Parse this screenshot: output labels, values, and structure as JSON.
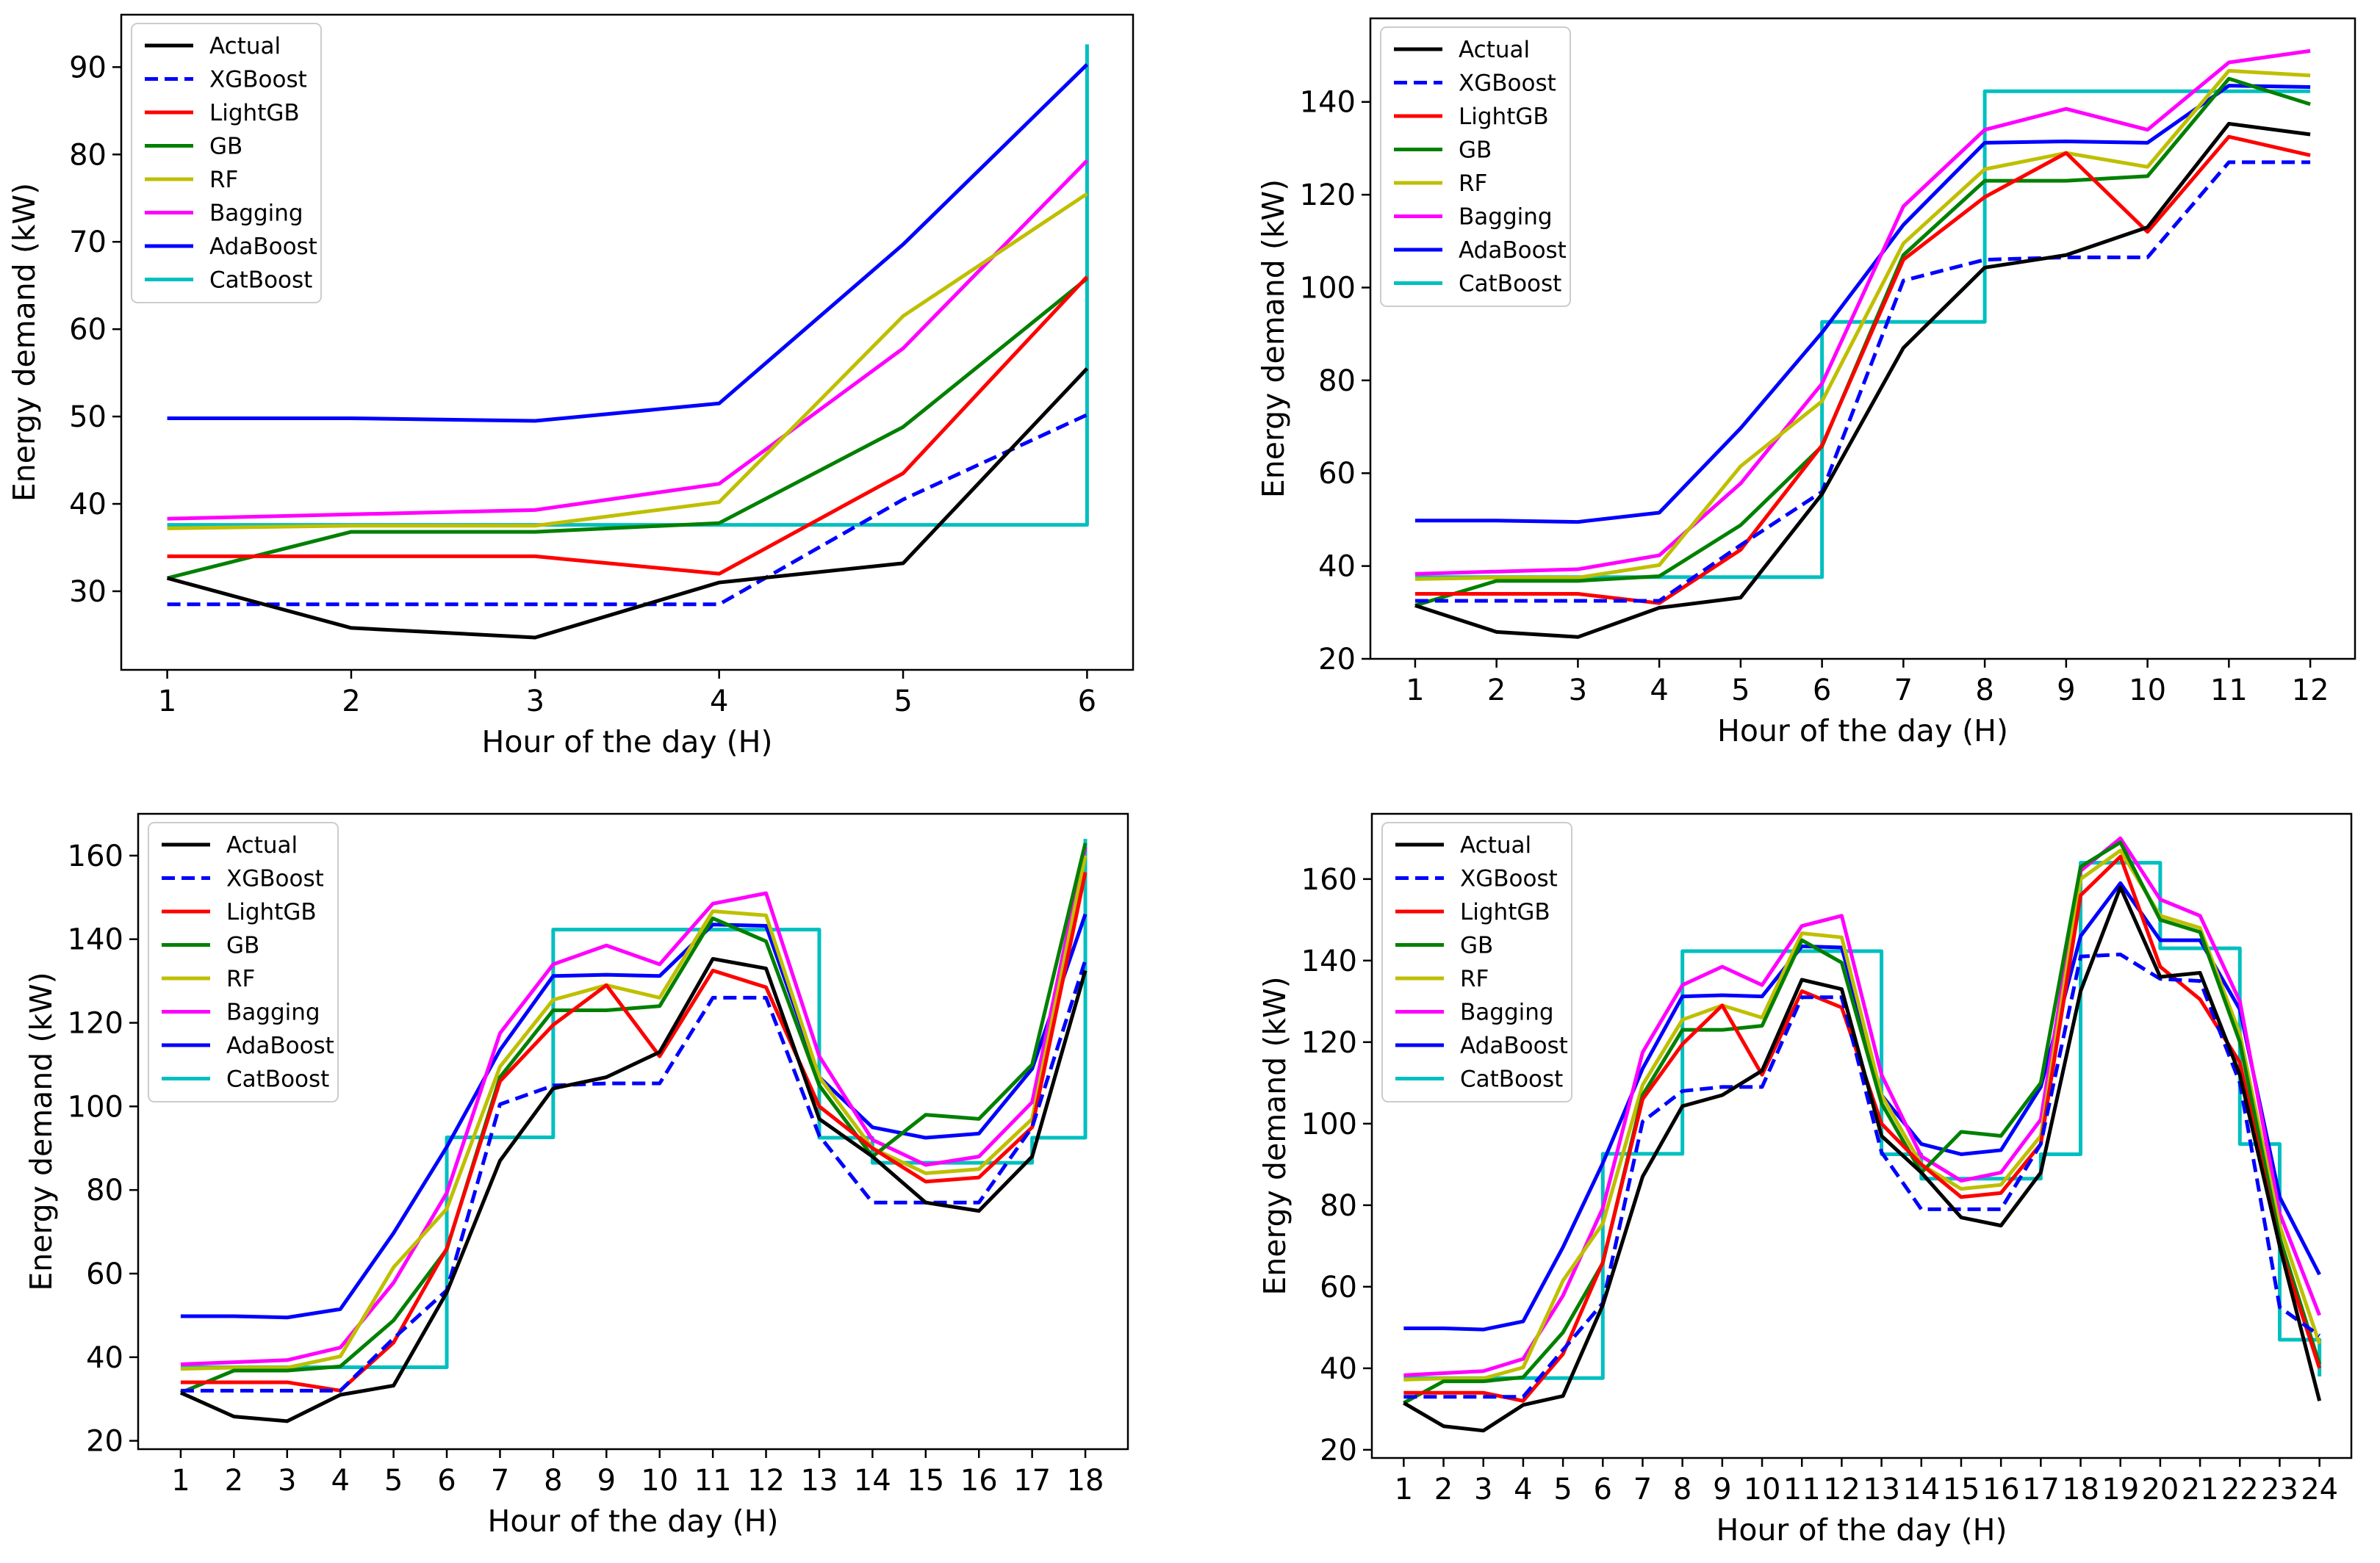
{
  "colors": {
    "Actual": "#000000",
    "XGBoost": "#0000ff",
    "LightGB": "#ff0000",
    "GB": "#008000",
    "RF": "#bfbf00",
    "Bagging": "#ff00ff",
    "AdaBoost": "#0000ff",
    "CatBoost": "#00bfbf"
  },
  "chart_data": [
    {
      "type": "line",
      "title": "",
      "xlabel": "Hour of the day (H)",
      "ylabel": "Energy demand (kW)",
      "x": [
        1,
        2,
        3,
        4,
        5,
        6
      ],
      "xlim": [
        0.75,
        6.25
      ],
      "ylim": [
        21,
        96
      ],
      "yticks": [
        30,
        40,
        50,
        60,
        70,
        80,
        90
      ],
      "legend": "top-left",
      "series": [
        {
          "name": "Actual",
          "values": [
            31.5,
            25.8,
            24.7,
            31.0,
            33.2,
            55.5
          ]
        },
        {
          "name": "XGBoost",
          "values": [
            28.5,
            28.5,
            28.5,
            28.5,
            40.5,
            50.2
          ]
        },
        {
          "name": "LightGB",
          "values": [
            34.0,
            34.0,
            34.0,
            32.0,
            43.5,
            66.0
          ]
        },
        {
          "name": "GB",
          "values": [
            31.5,
            36.8,
            36.8,
            37.8,
            48.8,
            65.8
          ]
        },
        {
          "name": "RF",
          "values": [
            37.2,
            37.5,
            37.5,
            40.2,
            61.5,
            75.5
          ]
        },
        {
          "name": "Bagging",
          "values": [
            38.3,
            38.8,
            39.3,
            42.3,
            57.8,
            79.3
          ]
        },
        {
          "name": "AdaBoost",
          "values": [
            49.8,
            49.8,
            49.5,
            51.5,
            69.7,
            90.3
          ]
        },
        {
          "name": "CatBoost",
          "step": true,
          "values": [
            37.6,
            37.6,
            37.6,
            37.6,
            37.6,
            92.6
          ]
        }
      ]
    },
    {
      "type": "line",
      "title": "",
      "xlabel": "Hour of the day (H)",
      "ylabel": "Energy demand (kW)",
      "x": [
        1,
        2,
        3,
        4,
        5,
        6,
        7,
        8,
        9,
        10,
        11,
        12
      ],
      "xlim": [
        0.45,
        12.55
      ],
      "ylim": [
        20,
        158
      ],
      "yticks": [
        20,
        40,
        60,
        80,
        100,
        120,
        140
      ],
      "legend": "top-left",
      "series": [
        {
          "name": "Actual",
          "values": [
            31.5,
            25.8,
            24.7,
            31.0,
            33.2,
            55.5,
            87.0,
            104.3,
            107.0,
            113.0,
            135.3,
            133.0
          ]
        },
        {
          "name": "XGBoost",
          "values": [
            32.5,
            32.5,
            32.5,
            32.5,
            44.5,
            56.0,
            101.5,
            106.0,
            106.5,
            106.5,
            127.0,
            127.0
          ]
        },
        {
          "name": "LightGB",
          "values": [
            34.0,
            34.0,
            34.0,
            32.0,
            43.5,
            66.0,
            106.0,
            119.5,
            129.0,
            112.0,
            132.5,
            128.5
          ]
        },
        {
          "name": "GB",
          "values": [
            31.5,
            36.8,
            36.8,
            37.8,
            48.8,
            65.8,
            107.0,
            123.0,
            123.0,
            124.0,
            145.0,
            139.5
          ]
        },
        {
          "name": "RF",
          "values": [
            37.2,
            37.5,
            37.5,
            40.2,
            61.5,
            75.5,
            109.5,
            125.5,
            129.0,
            126.0,
            146.7,
            145.7
          ]
        },
        {
          "name": "Bagging",
          "values": [
            38.3,
            38.8,
            39.3,
            42.3,
            57.8,
            79.3,
            117.5,
            134.0,
            138.5,
            134.0,
            148.5,
            151.0
          ]
        },
        {
          "name": "AdaBoost",
          "values": [
            49.8,
            49.8,
            49.5,
            51.5,
            69.7,
            90.3,
            113.5,
            131.2,
            131.5,
            131.2,
            143.5,
            143.2
          ]
        },
        {
          "name": "CatBoost",
          "step": true,
          "values": [
            37.6,
            37.6,
            37.6,
            37.6,
            37.6,
            92.6,
            92.6,
            142.3,
            142.3,
            142.3,
            142.3,
            142.3
          ]
        }
      ]
    },
    {
      "type": "line",
      "title": "",
      "xlabel": "Hour of the day (H)",
      "ylabel": "Energy demand (kW)",
      "x": [
        1,
        2,
        3,
        4,
        5,
        6,
        7,
        8,
        9,
        10,
        11,
        12,
        13,
        14,
        15,
        16,
        17,
        18
      ],
      "xlim": [
        0.2,
        18.8
      ],
      "ylim": [
        18,
        170
      ],
      "yticks": [
        20,
        40,
        60,
        80,
        100,
        120,
        140,
        160
      ],
      "legend": "top-left",
      "series": [
        {
          "name": "Actual",
          "values": [
            31.5,
            25.8,
            24.7,
            31.0,
            33.2,
            55.5,
            87.0,
            104.3,
            107.0,
            113.0,
            135.3,
            133.0,
            97.0,
            88.0,
            77.0,
            75.0,
            88.0,
            132.5
          ]
        },
        {
          "name": "XGBoost",
          "values": [
            32.0,
            32.0,
            32.0,
            32.0,
            44.5,
            56.0,
            100.5,
            105.0,
            105.5,
            105.5,
            126.0,
            126.0,
            93.0,
            77.0,
            77.0,
            77.0,
            95.0,
            135.0
          ]
        },
        {
          "name": "LightGB",
          "values": [
            34.0,
            34.0,
            34.0,
            32.0,
            43.5,
            66.0,
            106.0,
            119.5,
            129.0,
            112.0,
            132.5,
            128.5,
            100.0,
            90.0,
            82.0,
            83.0,
            95.0,
            156.0
          ]
        },
        {
          "name": "GB",
          "values": [
            31.5,
            36.8,
            36.8,
            37.8,
            48.8,
            65.8,
            107.0,
            123.0,
            123.0,
            124.0,
            145.0,
            139.5,
            105.0,
            88.0,
            98.0,
            97.0,
            110.0,
            163.0
          ]
        },
        {
          "name": "RF",
          "values": [
            37.2,
            37.5,
            37.5,
            40.2,
            61.5,
            75.5,
            109.5,
            125.5,
            129.0,
            126.0,
            146.7,
            145.7,
            107.0,
            90.0,
            84.0,
            85.0,
            97.0,
            160.0
          ]
        },
        {
          "name": "Bagging",
          "values": [
            38.3,
            38.8,
            39.3,
            42.3,
            57.8,
            79.3,
            117.5,
            134.0,
            138.5,
            134.0,
            148.5,
            151.0,
            112.0,
            92.0,
            86.0,
            88.0,
            101.0,
            162.0
          ]
        },
        {
          "name": "AdaBoost",
          "values": [
            49.8,
            49.8,
            49.5,
            51.5,
            69.7,
            90.3,
            113.5,
            131.2,
            131.5,
            131.2,
            143.5,
            143.2,
            107.0,
            95.0,
            92.5,
            93.5,
            109.0,
            146.0
          ]
        },
        {
          "name": "CatBoost",
          "step": true,
          "values": [
            37.6,
            37.6,
            37.6,
            37.6,
            37.6,
            92.6,
            92.6,
            142.3,
            142.3,
            142.3,
            142.3,
            142.3,
            92.5,
            86.5,
            86.5,
            86.5,
            92.5,
            164.0
          ]
        }
      ]
    },
    {
      "type": "line",
      "title": "",
      "xlabel": "Hour of the day (H)",
      "ylabel": "Energy demand (kW)",
      "x": [
        1,
        2,
        3,
        4,
        5,
        6,
        7,
        8,
        9,
        10,
        11,
        12,
        13,
        14,
        15,
        16,
        17,
        18,
        19,
        20,
        21,
        22,
        23,
        24
      ],
      "xlim": [
        0.2,
        24.8
      ],
      "ylim": [
        18,
        176
      ],
      "yticks": [
        20,
        40,
        60,
        80,
        100,
        120,
        140,
        160
      ],
      "legend": "top-left",
      "series": [
        {
          "name": "Actual",
          "values": [
            31.5,
            25.8,
            24.7,
            31.0,
            33.2,
            55.5,
            87.0,
            104.3,
            107.0,
            113.0,
            135.3,
            133.0,
            97.0,
            88.0,
            77.0,
            75.0,
            88.0,
            132.5,
            158.0,
            136.0,
            137.0,
            112.0,
            70.0,
            32.0
          ]
        },
        {
          "name": "XGBoost",
          "values": [
            33.0,
            33.0,
            33.0,
            33.0,
            44.5,
            56.0,
            100.5,
            108.0,
            109.0,
            109.0,
            131.0,
            131.0,
            93.0,
            79.0,
            79.0,
            79.0,
            95.0,
            141.0,
            141.5,
            135.5,
            135.0,
            110.0,
            55.0,
            48.0
          ]
        },
        {
          "name": "LightGB",
          "values": [
            34.0,
            34.0,
            34.0,
            32.0,
            43.5,
            66.0,
            106.0,
            119.5,
            129.0,
            112.0,
            132.5,
            128.5,
            100.0,
            90.0,
            82.0,
            83.0,
            95.0,
            156.0,
            165.5,
            138.5,
            130.5,
            115.0,
            70.0,
            40.0
          ]
        },
        {
          "name": "GB",
          "values": [
            31.5,
            36.8,
            36.8,
            37.8,
            48.8,
            65.8,
            107.0,
            123.0,
            123.0,
            124.0,
            145.0,
            139.5,
            105.0,
            88.0,
            98.0,
            97.0,
            110.0,
            163.0,
            169.0,
            150.0,
            147.0,
            120.0,
            72.0,
            41.0
          ]
        },
        {
          "name": "RF",
          "values": [
            37.2,
            37.5,
            37.5,
            40.2,
            61.5,
            75.5,
            109.5,
            125.5,
            129.0,
            126.0,
            146.7,
            145.7,
            107.0,
            90.0,
            84.0,
            85.0,
            97.0,
            160.0,
            167.0,
            151.0,
            148.0,
            122.0,
            75.0,
            46.0
          ]
        },
        {
          "name": "Bagging",
          "values": [
            38.3,
            38.8,
            39.3,
            42.3,
            57.8,
            79.3,
            117.5,
            134.0,
            138.5,
            134.0,
            148.5,
            151.0,
            112.0,
            92.0,
            86.0,
            88.0,
            101.0,
            162.0,
            170.0,
            155.0,
            151.0,
            130.0,
            78.0,
            53.0
          ]
        },
        {
          "name": "AdaBoost",
          "values": [
            49.8,
            49.8,
            49.5,
            51.5,
            69.7,
            90.3,
            113.5,
            131.2,
            131.5,
            131.2,
            143.5,
            143.2,
            107.0,
            95.0,
            92.5,
            93.5,
            109.0,
            146.0,
            159.0,
            145.0,
            145.0,
            128.0,
            82.0,
            63.0
          ]
        },
        {
          "name": "CatBoost",
          "step": true,
          "values": [
            37.6,
            37.6,
            37.6,
            37.6,
            37.6,
            92.6,
            92.6,
            142.3,
            142.3,
            142.3,
            142.3,
            142.3,
            92.5,
            86.5,
            86.5,
            86.5,
            92.5,
            164.0,
            164.0,
            143.0,
            143.0,
            95.0,
            47.0,
            38.0
          ]
        }
      ]
    }
  ]
}
